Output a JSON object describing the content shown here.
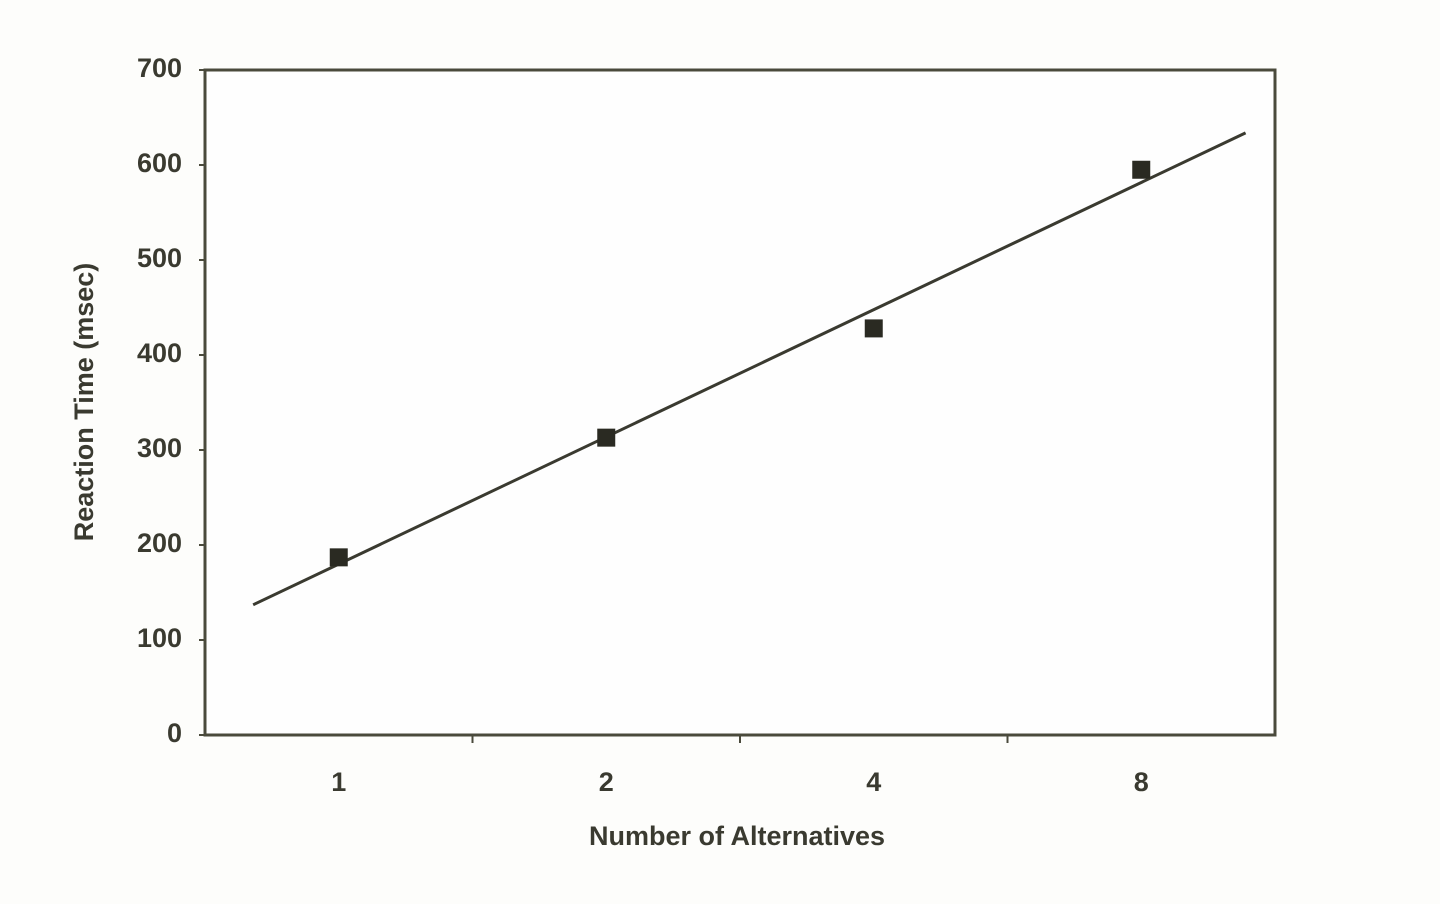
{
  "chart_data": {
    "type": "scatter",
    "xlabel": "Number of Alternatives",
    "ylabel": "Reaction Time (msec)",
    "categories": [
      "1",
      "2",
      "4",
      "8"
    ],
    "values": [
      187,
      313,
      428,
      595
    ],
    "color": "#2a2a22",
    "trendline": true,
    "ylim": [
      0,
      700
    ],
    "yticks": [
      0,
      100,
      200,
      300,
      400,
      500,
      600,
      700
    ]
  }
}
